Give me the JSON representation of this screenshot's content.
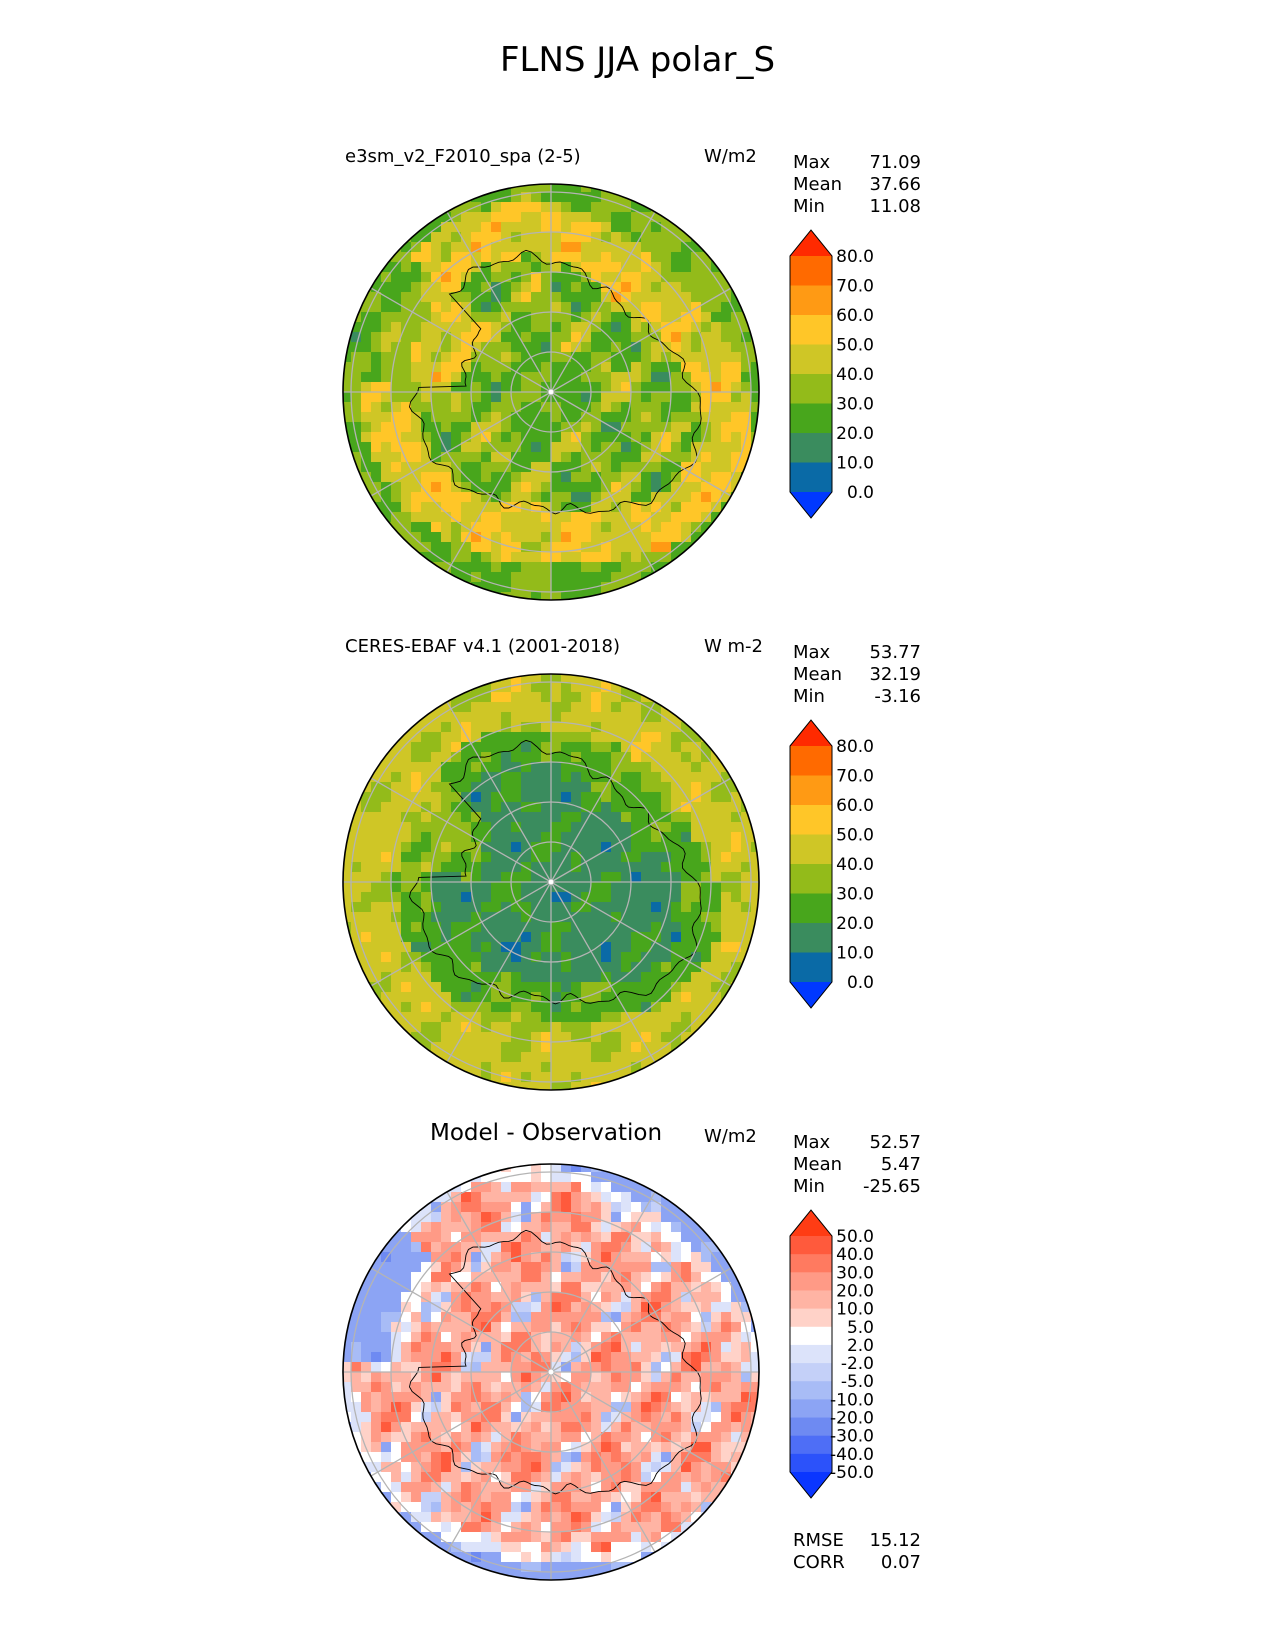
{
  "figure": {
    "title": "FLNS JJA polar_S"
  },
  "panels": [
    {
      "title": "e3sm_v2_F2010_spa (2-5)",
      "units": "W/m2",
      "stats": [
        {
          "k": "Max",
          "v": "71.09"
        },
        {
          "k": "Mean",
          "v": "37.66"
        },
        {
          "k": "Min",
          "v": "11.08"
        }
      ],
      "colorbar": {
        "levels": [
          "80.0",
          "70.0",
          "60.0",
          "50.0",
          "40.0",
          "30.0",
          "20.0",
          "10.0",
          "0.0"
        ],
        "colors": [
          "#ff2a00",
          "#ff6a00",
          "#ff9a14",
          "#ffc628",
          "#cfc626",
          "#93bb1a",
          "#48a61c",
          "#3a8c5e",
          "#0a6aa6",
          "#0038ff"
        ]
      },
      "palette": "abs",
      "field": "model"
    },
    {
      "title": "CERES-EBAF v4.1 (2001-2018)",
      "units": "W m-2",
      "stats": [
        {
          "k": "Max",
          "v": "53.77"
        },
        {
          "k": "Mean",
          "v": "32.19"
        },
        {
          "k": "Min",
          "v": "-3.16"
        }
      ],
      "colorbar": {
        "levels": [
          "80.0",
          "70.0",
          "60.0",
          "50.0",
          "40.0",
          "30.0",
          "20.0",
          "10.0",
          "0.0"
        ],
        "colors": [
          "#ff2a00",
          "#ff6a00",
          "#ff9a14",
          "#ffc628",
          "#cfc626",
          "#93bb1a",
          "#48a61c",
          "#3a8c5e",
          "#0a6aa6",
          "#0038ff"
        ]
      },
      "palette": "abs",
      "field": "obs"
    },
    {
      "title": "Model - Observation",
      "units": "W/m2",
      "stats": [
        {
          "k": "Max",
          "v": "52.57"
        },
        {
          "k": "Mean",
          "v": "5.47"
        },
        {
          "k": "Min",
          "v": "-25.65"
        }
      ],
      "colorbar": {
        "levels": [
          "50.0",
          "40.0",
          "30.0",
          "20.0",
          "10.0",
          "5.0",
          "2.0",
          "-2.0",
          "-5.0",
          "-10.0",
          "-20.0",
          "-30.0",
          "-40.0",
          "-50.0"
        ],
        "colors": [
          "#ff3c14",
          "#ff5a3c",
          "#ff7a60",
          "#ff9a86",
          "#ffb4a4",
          "#ffd2c8",
          "#ffffff",
          "#dce3fa",
          "#c4d0f8",
          "#a8bcf6",
          "#8ca4f4",
          "#6e8af2",
          "#4e6ef6",
          "#2c52fa",
          "#0a36ff"
        ]
      },
      "palette": "diff",
      "field": "diff"
    }
  ],
  "footer": [
    {
      "k": "RMSE",
      "v": "15.12"
    },
    {
      "k": "CORR",
      "v": "0.07"
    }
  ],
  "chart_data": [
    {
      "type": "heatmap",
      "title": "e3sm_v2_F2010_spa (2-5)",
      "units": "W/m2",
      "max": 71.09,
      "mean": 37.66,
      "min": 11.08,
      "colorbar_levels": [
        0,
        10,
        20,
        30,
        40,
        50,
        60,
        70,
        80
      ]
    },
    {
      "type": "heatmap",
      "title": "CERES-EBAF v4.1 (2001-2018)",
      "units": "W m-2",
      "max": 53.77,
      "mean": 32.19,
      "min": -3.16,
      "colorbar_levels": [
        0,
        10,
        20,
        30,
        40,
        50,
        60,
        70,
        80
      ]
    },
    {
      "type": "heatmap",
      "title": "Model - Observation",
      "units": "W/m2",
      "max": 52.57,
      "mean": 5.47,
      "min": -25.65,
      "colorbar_levels": [
        -50,
        -40,
        -30,
        -20,
        -10,
        -5,
        -2,
        2,
        5,
        10,
        20,
        30,
        40,
        50
      ],
      "rmse": 15.12,
      "corr": 0.07
    }
  ]
}
